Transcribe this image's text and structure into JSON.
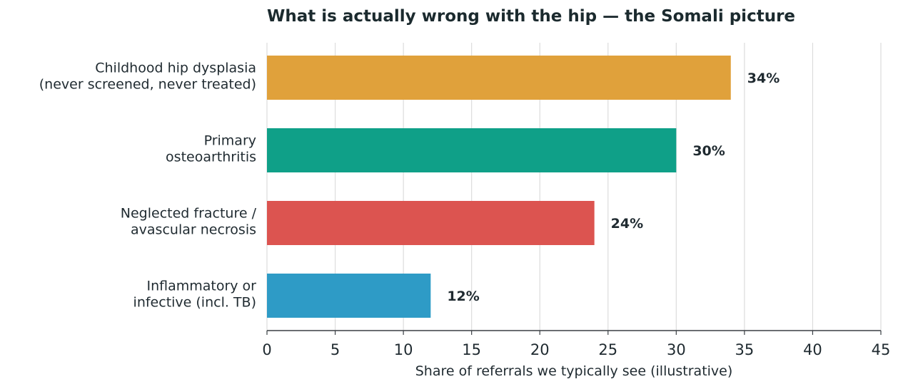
{
  "chart_data": {
    "type": "bar",
    "orientation": "horizontal",
    "title": "What is actually wrong with the hip — the Somali picture",
    "xlabel": "Share of referrals we typically see (illustrative)",
    "ylabel": "",
    "xlim": [
      0,
      45
    ],
    "xticks": [
      0,
      5,
      10,
      15,
      20,
      25,
      30,
      35,
      40,
      45
    ],
    "grid": "vertical",
    "categories": [
      [
        "Childhood hip dysplasia",
        "(never screened, never treated)"
      ],
      [
        "Primary",
        "osteoarthritis"
      ],
      [
        "Neglected fracture /",
        "avascular necrosis"
      ],
      [
        "Inflammatory or",
        "infective (incl. TB)"
      ]
    ],
    "values": [
      34,
      30,
      24,
      12
    ],
    "value_labels": [
      "34%",
      "30%",
      "24%",
      "12%"
    ],
    "colors": [
      "#e0a13b",
      "#0fa088",
      "#dc5450",
      "#2e9bc6"
    ]
  }
}
